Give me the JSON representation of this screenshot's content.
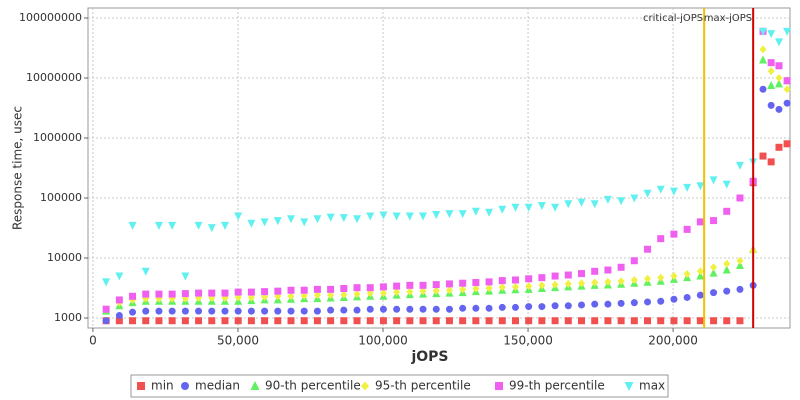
{
  "chart_data": {
    "type": "scatter",
    "xlabel": "jOPS",
    "ylabel": "Response time, usec",
    "log_y": true,
    "grid": true,
    "legend": "bottom",
    "xlim": [
      -1700,
      240300
    ],
    "ylim": [
      681,
      146800000
    ],
    "xticks": [
      0,
      {
        "value": 50000,
        "label": "50,000"
      },
      {
        "value": 100000,
        "label": "100,000"
      },
      {
        "value": 150000,
        "label": "150,000"
      },
      {
        "value": 200000,
        "label": "200,000"
      }
    ],
    "yticks": [
      1000,
      10000,
      100000,
      1000000,
      10000000,
      100000000
    ],
    "markers": [
      {
        "label": "critical-jOPS",
        "value": 210700,
        "color": "#f5c000"
      },
      {
        "label": "max-jOPS",
        "value": 227600,
        "color": "#d00000"
      }
    ],
    "x": [
      4552,
      9104,
      13656,
      18208,
      22760,
      27312,
      31864,
      36416,
      40968,
      45520,
      50072,
      54624,
      59176,
      63728,
      68280,
      72832,
      77384,
      81936,
      86488,
      91040,
      95592,
      100144,
      104696,
      109248,
      113800,
      118352,
      122904,
      127456,
      132008,
      136560,
      141112,
      145664,
      150216,
      154768,
      159320,
      163872,
      168424,
      172976,
      177528,
      182080,
      186632,
      191184,
      195736,
      200288,
      204840,
      209392,
      213944,
      218496,
      223048,
      227600,
      231000,
      233800,
      236500,
      239300
    ],
    "series": [
      {
        "name": "min",
        "color": "#f05050",
        "marker": "square",
        "values": [
          900,
          900,
          900,
          900,
          900,
          900,
          900,
          900,
          900,
          900,
          900,
          900,
          900,
          900,
          900,
          900,
          900,
          900,
          900,
          900,
          900,
          900,
          900,
          900,
          900,
          900,
          900,
          900,
          900,
          900,
          900,
          900,
          900,
          900,
          900,
          900,
          900,
          900,
          900,
          900,
          900,
          900,
          900,
          900,
          900,
          900,
          900,
          900,
          900,
          180000,
          500000,
          400000,
          700000,
          800000
        ]
      },
      {
        "name": "median",
        "color": "#6464f0",
        "marker": "circle",
        "values": [
          900,
          1100,
          1250,
          1300,
          1300,
          1300,
          1300,
          1300,
          1300,
          1300,
          1300,
          1300,
          1300,
          1300,
          1300,
          1300,
          1300,
          1350,
          1350,
          1350,
          1400,
          1400,
          1400,
          1400,
          1400,
          1400,
          1400,
          1450,
          1450,
          1450,
          1500,
          1500,
          1550,
          1550,
          1600,
          1600,
          1650,
          1700,
          1700,
          1750,
          1800,
          1850,
          1900,
          2050,
          2200,
          2400,
          2650,
          2800,
          3000,
          3500,
          6500000,
          3500000,
          3000000,
          3800000
        ]
      },
      {
        "name": "90-th percentile",
        "color": "#60f060",
        "marker": "triangle-up",
        "values": [
          1300,
          1600,
          1800,
          1900,
          1900,
          1900,
          1900,
          1900,
          1900,
          1900,
          1900,
          1950,
          2000,
          2000,
          2050,
          2100,
          2100,
          2150,
          2200,
          2250,
          2300,
          2300,
          2400,
          2450,
          2500,
          2550,
          2600,
          2650,
          2750,
          2800,
          2900,
          2950,
          3000,
          3100,
          3200,
          3300,
          3400,
          3500,
          3550,
          3650,
          3800,
          3950,
          4100,
          4400,
          4700,
          5000,
          5600,
          6300,
          7500,
          14000,
          20000000,
          7500000,
          8000000,
          9000000
        ]
      },
      {
        "name": "95-th percentile",
        "color": "#f0f040",
        "marker": "diamond",
        "values": [
          1400,
          1800,
          2000,
          2100,
          2100,
          2100,
          2100,
          2150,
          2150,
          2150,
          2200,
          2200,
          2250,
          2300,
          2300,
          2350,
          2400,
          2400,
          2450,
          2500,
          2600,
          2600,
          2700,
          2750,
          2800,
          2850,
          2900,
          3000,
          3100,
          3150,
          3250,
          3300,
          3400,
          3500,
          3600,
          3700,
          3800,
          3900,
          4000,
          4100,
          4300,
          4500,
          4700,
          5000,
          5400,
          6000,
          7000,
          8000,
          9000,
          13000,
          30000000,
          13000000,
          10000000,
          6500000
        ]
      },
      {
        "name": "99-th percentile",
        "color": "#f060f0",
        "marker": "square",
        "values": [
          1400,
          2000,
          2300,
          2500,
          2500,
          2500,
          2550,
          2600,
          2600,
          2600,
          2700,
          2700,
          2750,
          2800,
          2900,
          2900,
          3000,
          3000,
          3100,
          3200,
          3200,
          3300,
          3400,
          3500,
          3500,
          3600,
          3700,
          3800,
          3900,
          4000,
          4200,
          4300,
          4500,
          4700,
          5000,
          5200,
          5500,
          6000,
          6300,
          7000,
          9000,
          14000,
          21000,
          25000,
          30000,
          40000,
          42000,
          60000,
          100000,
          190000,
          60000000,
          18000000,
          16000000,
          9000000
        ]
      },
      {
        "name": "max",
        "color": "#60f0f0",
        "marker": "triangle-down",
        "values": [
          4000,
          5000,
          35000,
          6000,
          35000,
          35000,
          5000,
          35000,
          32000,
          35000,
          50000,
          38000,
          40000,
          42000,
          45000,
          40000,
          45000,
          48000,
          47000,
          45000,
          50000,
          52000,
          50000,
          50000,
          50000,
          53000,
          55000,
          55000,
          60000,
          58000,
          65000,
          70000,
          70000,
          75000,
          70000,
          80000,
          85000,
          80000,
          95000,
          90000,
          100000,
          120000,
          140000,
          130000,
          150000,
          160000,
          200000,
          170000,
          350000,
          400000,
          60000000,
          55000000,
          40000000,
          60000000
        ]
      }
    ]
  }
}
